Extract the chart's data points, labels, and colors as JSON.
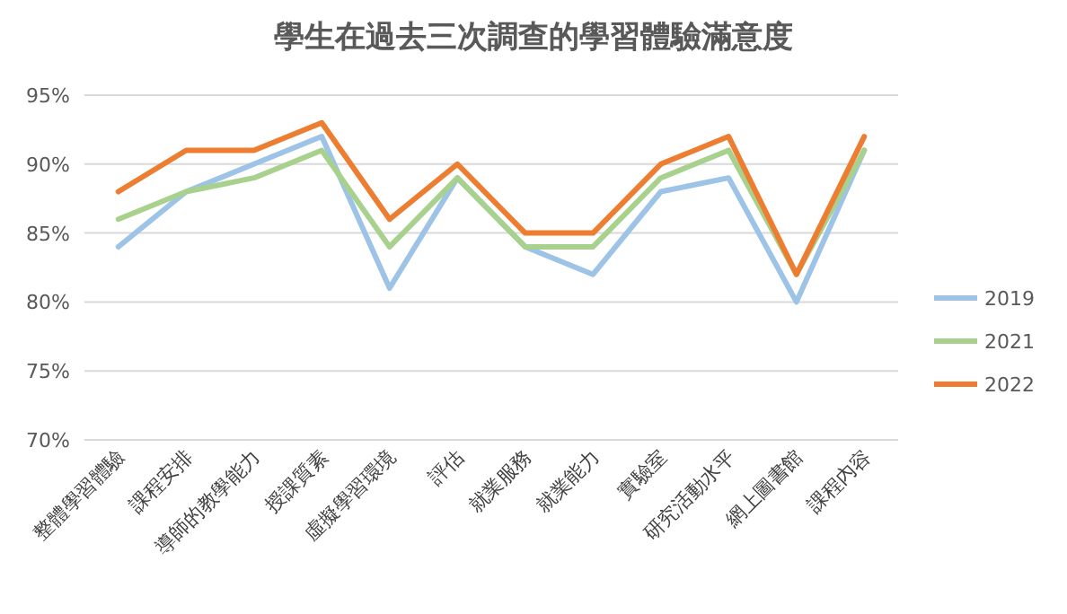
{
  "chart_data": {
    "type": "line",
    "title": "學生在過去三次調查的學習體驗滿意度",
    "categories": [
      "整體學習體驗",
      "課程安排",
      "導師的教學能力",
      "授課質素",
      "虛擬學習環境",
      "評估",
      "就業服務",
      "就業能力",
      "實驗室",
      "研究活動水平",
      "網上圖書館",
      "課程內容"
    ],
    "series": [
      {
        "name": "2019",
        "color": "#9dc3e6",
        "values": [
          84,
          88,
          90,
          92,
          81,
          89,
          84,
          82,
          88,
          89,
          80,
          91
        ]
      },
      {
        "name": "2021",
        "color": "#a9d18e",
        "values": [
          86,
          88,
          89,
          91,
          84,
          89,
          84,
          84,
          89,
          91,
          82,
          91
        ]
      },
      {
        "name": "2022",
        "color": "#ed7d31",
        "values": [
          88,
          91,
          91,
          93,
          86,
          90,
          85,
          85,
          90,
          92,
          82,
          92
        ]
      }
    ],
    "ylim": [
      70,
      95
    ],
    "yticks": [
      {
        "value": 70,
        "label": "70%"
      },
      {
        "value": 75,
        "label": "75%"
      },
      {
        "value": 80,
        "label": "80%"
      },
      {
        "value": 85,
        "label": "85%"
      },
      {
        "value": 90,
        "label": "90%"
      },
      {
        "value": 95,
        "label": "95%"
      }
    ],
    "grid": "y",
    "legend": "right",
    "marker": "none",
    "line_style": "solid"
  }
}
